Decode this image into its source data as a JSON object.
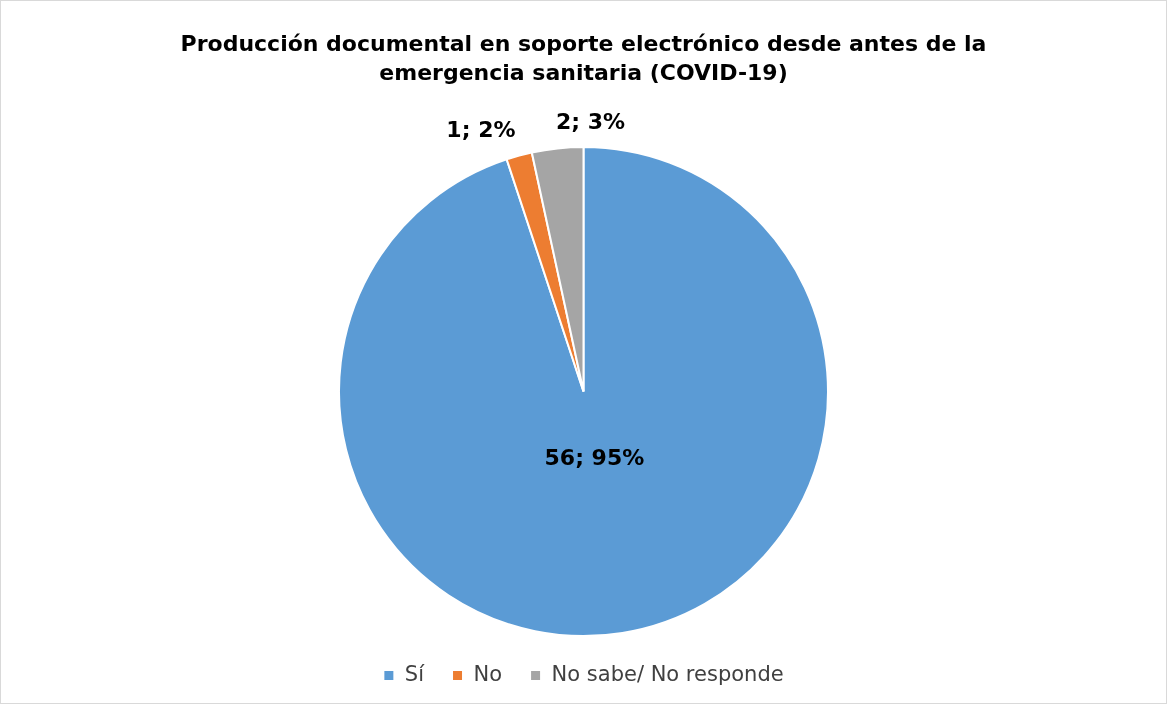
{
  "chart_data": {
    "type": "pie",
    "title": "Producción documental en soporte electrónico desde antes de la emergencia sanitaria (COVID-19)",
    "categories": [
      "Sí",
      "No",
      "No sabe/ No responde"
    ],
    "values": [
      56,
      1,
      2
    ],
    "colors": [
      "#5b9bd5",
      "#ed7d31",
      "#a5a5a5"
    ],
    "value_labels": [
      "56; 95%",
      "1; 2%",
      "2; 3%"
    ],
    "legend": "bottom"
  }
}
